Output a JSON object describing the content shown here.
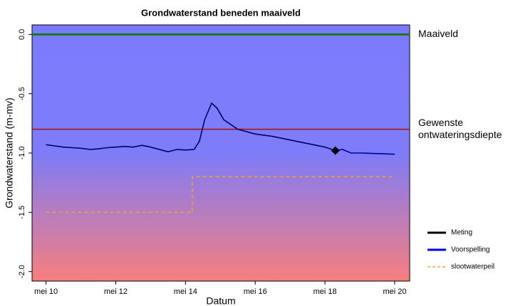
{
  "chart_data": {
    "type": "line",
    "title": "Grondwaterstand beneden maaiveld",
    "x_label": "Datum",
    "y_label": "Grondwaterstand (m-mv)",
    "xlim": [
      9.6,
      20.43
    ],
    "xticks": [
      {
        "value": 10,
        "label": "mei 10"
      },
      {
        "value": 12,
        "label": "mei 12"
      },
      {
        "value": 14,
        "label": "mei 14"
      },
      {
        "value": 16,
        "label": "mei 16"
      },
      {
        "value": 18,
        "label": "mei 18"
      },
      {
        "value": 20,
        "label": "mei 20"
      }
    ],
    "ylim": [
      -2.08,
      0.08
    ],
    "yticks": [
      {
        "value": 0,
        "label": "0.0"
      },
      -0.5,
      {
        "value": -1,
        "label": "-1.0"
      },
      -1.5,
      {
        "value": -2,
        "label": "-2.0"
      }
    ],
    "reference_lines": [
      {
        "label": [
          "Maaiveld"
        ],
        "value": 0,
        "color": "#1a7a1a"
      },
      {
        "label": [
          "Gewenste",
          "ontwateringsdiepte"
        ],
        "value": -0.8,
        "color": "#a01010"
      }
    ],
    "series": [
      {
        "name": "Meting",
        "color": "#000000",
        "style": "solid",
        "x": [
          10,
          10.25,
          10.5,
          10.75,
          11,
          11.25,
          11.5,
          11.75,
          12,
          12.25,
          12.5,
          12.75,
          13,
          13.25,
          13.5,
          13.75,
          14,
          14.25,
          14.4,
          14.55,
          14.75,
          14.9,
          15.1,
          15.5,
          16,
          16.5,
          17,
          17.5,
          18,
          18.3
        ],
        "values": [
          -0.93,
          -0.94,
          -0.95,
          -0.955,
          -0.96,
          -0.97,
          -0.965,
          -0.955,
          -0.95,
          -0.945,
          -0.95,
          -0.935,
          -0.95,
          -0.97,
          -0.99,
          -0.97,
          -0.975,
          -0.97,
          -0.9,
          -0.72,
          -0.58,
          -0.62,
          -0.72,
          -0.8,
          -0.84,
          -0.86,
          -0.89,
          -0.92,
          -0.95,
          -0.98
        ]
      },
      {
        "name": "Voorspelling",
        "color": "#0000ff",
        "style": "solid",
        "x": [
          18.3,
          18.5,
          18.75,
          19,
          19.5,
          20
        ],
        "values": [
          -0.98,
          -0.97,
          -1,
          -1,
          -1.005,
          -1.01
        ]
      },
      {
        "name": "slootwaterpeil",
        "color": "#f5a623",
        "style": "dashed",
        "x": [
          10,
          14.2,
          14.2,
          20
        ],
        "values": [
          -1.5,
          -1.5,
          -1.2,
          -1.2
        ]
      }
    ],
    "current_point": {
      "x": 18.3,
      "y": -0.98
    }
  }
}
